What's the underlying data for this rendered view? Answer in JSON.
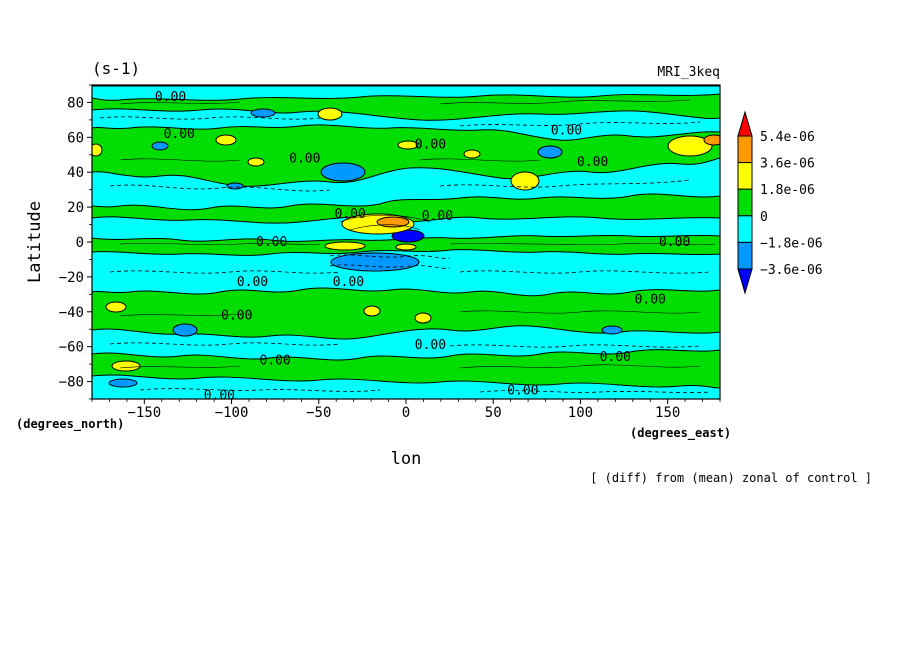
{
  "chart_data": {
    "type": "heatmap",
    "subtype": "filled-contour",
    "title_left": "(s-1)",
    "title_right": "MRI_3keq",
    "xlabel": "lon",
    "ylabel": "Latitude",
    "x_units_label": "(degrees_east)",
    "y_units_label": "(degrees_north)",
    "annotation": "[ (diff) from (mean) zonal of control ]",
    "xlim": [
      -180,
      180
    ],
    "ylim": [
      -90,
      90
    ],
    "xticks": [
      {
        "value": -150,
        "label": "−150"
      },
      {
        "value": -100,
        "label": "−100"
      },
      {
        "value": -50,
        "label": "−50"
      },
      {
        "value": 0,
        "label": "0"
      },
      {
        "value": 50,
        "label": "50"
      },
      {
        "value": 100,
        "label": "100"
      },
      {
        "value": 150,
        "label": "150"
      }
    ],
    "yticks": [
      {
        "value": 80,
        "label": "80"
      },
      {
        "value": 60,
        "label": "60"
      },
      {
        "value": 40,
        "label": "40"
      },
      {
        "value": 20,
        "label": "20"
      },
      {
        "value": 0,
        "label": "0"
      },
      {
        "value": -20,
        "label": "−20"
      },
      {
        "value": -40,
        "label": "−40"
      },
      {
        "value": -60,
        "label": "−60"
      },
      {
        "value": -80,
        "label": "−80"
      }
    ],
    "colorbar": {
      "levels": [
        {
          "label": "5.4e-06",
          "value": 5.4e-06
        },
        {
          "label": "3.6e-06",
          "value": 3.6e-06
        },
        {
          "label": "1.8e-06",
          "value": 1.8e-06
        },
        {
          "label": "0",
          "value": 0
        },
        {
          "label": "−1.8e-06",
          "value": -1.8e-06
        },
        {
          "label": "−3.6e-06",
          "value": -3.6e-06
        }
      ],
      "colors": [
        "#ff0000",
        "#ff9900",
        "#ffff00",
        "#00dd00",
        "#00ffff",
        "#0099ff",
        "#0000ff"
      ]
    },
    "contour_labels": [
      {
        "text": "0.00",
        "lon": -135,
        "lat": 83
      },
      {
        "text": "0.00",
        "lon": -130,
        "lat": 62
      },
      {
        "text": "0.00",
        "lon": -58,
        "lat": 48
      },
      {
        "text": "0.00",
        "lon": -32,
        "lat": 16
      },
      {
        "text": "0.00",
        "lon": 18,
        "lat": 15
      },
      {
        "text": "0.00",
        "lon": 14,
        "lat": 56
      },
      {
        "text": "0.00",
        "lon": 92,
        "lat": 64
      },
      {
        "text": "0.00",
        "lon": 107,
        "lat": 46
      },
      {
        "text": "0.00",
        "lon": -77,
        "lat": 0
      },
      {
        "text": "0.00",
        "lon": 154,
        "lat": 0
      },
      {
        "text": "0.00",
        "lon": -88,
        "lat": -23
      },
      {
        "text": "0.00",
        "lon": -33,
        "lat": -23
      },
      {
        "text": "0.00",
        "lon": -97,
        "lat": -42
      },
      {
        "text": "0.00",
        "lon": 140,
        "lat": -33
      },
      {
        "text": "0.00",
        "lon": 14,
        "lat": -59
      },
      {
        "text": "0.00",
        "lon": -75,
        "lat": -68
      },
      {
        "text": "0.00",
        "lon": 120,
        "lat": -66
      },
      {
        "text": "0.00",
        "lon": -107,
        "lat": -88
      },
      {
        "text": "0.00",
        "lon": 67,
        "lat": -85
      }
    ]
  }
}
